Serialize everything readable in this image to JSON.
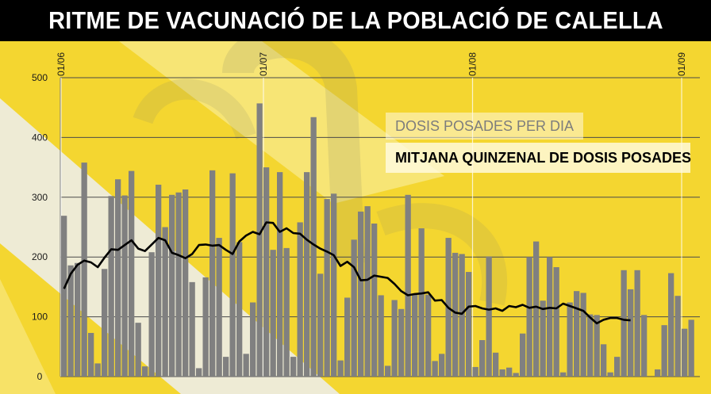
{
  "title": "RITME DE VACUNACIÓ DE LA POBLACIÓ DE CALELLA",
  "colors": {
    "background_yellow": "#F4D630",
    "stripe_light": "#F8E98C",
    "stripe_white": "#EDEDE8",
    "bars": "#808080",
    "line": "#000000",
    "title_bar": "#000000",
    "title_text": "#FFFFFF"
  },
  "chart_data": {
    "type": "bar",
    "title": "RITME DE VACUNACIÓ DE LA POBLACIÓ DE CALELLA",
    "xlabel": "",
    "ylabel": "",
    "ylim": [
      0,
      500
    ],
    "yticks": [
      0,
      100,
      200,
      300,
      400,
      500
    ],
    "grid": true,
    "legend_position": "right",
    "x_tick_labels": [
      {
        "label": "01/06",
        "index": 0
      },
      {
        "label": "01/07",
        "index": 30
      },
      {
        "label": "01/08",
        "index": 61
      },
      {
        "label": "01/09",
        "index": 92
      }
    ],
    "series": [
      {
        "name": "DOSIS POSADES PER DIA",
        "kind": "bar",
        "values": [
          269,
          186,
          190,
          358,
          73,
          22,
          180,
          302,
          330,
          303,
          344,
          90,
          17,
          208,
          321,
          250,
          304,
          308,
          313,
          158,
          14,
          166,
          345,
          232,
          33,
          340,
          225,
          38,
          124,
          457,
          350,
          212,
          342,
          215,
          33,
          258,
          342,
          434,
          172,
          297,
          306,
          27,
          132,
          229,
          276,
          285,
          256,
          136,
          18,
          128,
          113,
          304,
          137,
          248,
          137,
          26,
          38,
          232,
          207,
          205,
          175,
          16,
          61,
          201,
          40,
          12,
          15,
          6,
          72,
          200,
          226,
          127,
          200,
          183,
          7,
          124,
          143,
          140,
          104,
          103,
          54,
          7,
          33,
          178,
          146,
          178,
          103,
          0,
          12,
          86,
          173,
          135,
          80,
          95
        ],
        "color": "#808080"
      },
      {
        "name": "MITJANA QUINZENAL DE DOSIS POSADES",
        "kind": "line",
        "values": [
          147,
          172,
          187,
          194,
          191,
          183,
          199,
          213,
          212,
          220,
          228,
          214,
          210,
          221,
          232,
          228,
          207,
          203,
          198,
          205,
          220,
          221,
          219,
          220,
          212,
          205,
          226,
          236,
          242,
          238,
          258,
          257,
          242,
          248,
          240,
          239,
          229,
          221,
          214,
          209,
          203,
          185,
          192,
          183,
          161,
          162,
          169,
          167,
          165,
          155,
          143,
          136,
          138,
          139,
          141,
          127,
          128,
          115,
          107,
          105,
          117,
          118,
          114,
          112,
          114,
          110,
          118,
          116,
          120,
          115,
          117,
          113,
          115,
          114,
          122,
          118,
          114,
          110,
          99,
          89,
          95,
          98,
          98,
          95,
          94
        ]
      }
    ]
  }
}
